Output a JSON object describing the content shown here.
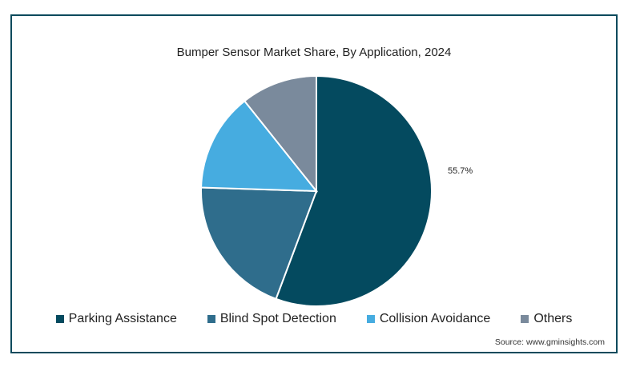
{
  "chart_data": {
    "type": "pie",
    "title": "Bumper Sensor Market Share, By Application, 2024",
    "slices": [
      {
        "label": "Parking Assistance",
        "value": 55.7,
        "color": "#044a5f"
      },
      {
        "label": "Blind Spot Detection",
        "value": 19.8,
        "color": "#2f6d8c"
      },
      {
        "label": "Collision Avoidance",
        "value": 13.8,
        "color": "#46ace0"
      },
      {
        "label": "Others",
        "value": 10.7,
        "color": "#7a8a9c"
      }
    ],
    "data_labels": [
      "55.7%"
    ],
    "legend_position": "bottom"
  },
  "source": "Source: www.gminsights.com"
}
